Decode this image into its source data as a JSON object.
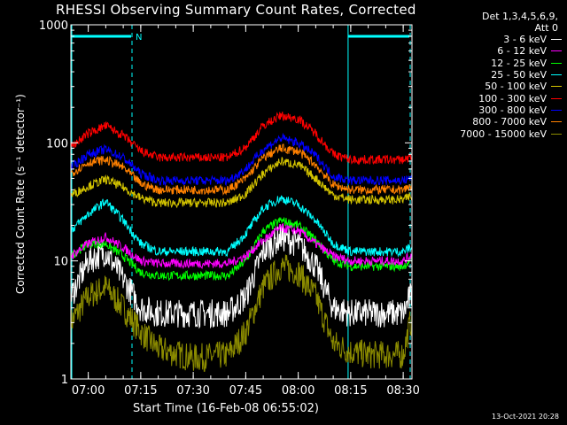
{
  "chart_data": {
    "type": "line",
    "title": "RHESSI Observing Summary Count Rates, Corrected",
    "xlabel": "Start Time (16-Feb-08 06:55:02)",
    "ylabel": "Corrected Count Rate (s⁻¹ detector⁻¹)",
    "yscale": "log",
    "ylim": [
      1,
      1000
    ],
    "xlim": [
      "06:55:02",
      "08:32:30"
    ],
    "x_ticks": [
      "07:00",
      "07:15",
      "07:30",
      "07:45",
      "08:00",
      "08:15",
      "08:30"
    ],
    "y_ticks": [
      "1",
      "10",
      "100",
      "1000"
    ],
    "legend_header": [
      "Det 1,3,4,5,6,9,",
      "Att 0"
    ],
    "legend_position": "top-right",
    "sample_times": [
      "06:55",
      "07:00",
      "07:05",
      "07:10",
      "07:15",
      "07:20",
      "07:30",
      "07:40",
      "07:45",
      "07:50",
      "07:55",
      "08:00",
      "08:05",
      "08:10",
      "08:15",
      "08:20",
      "08:25",
      "08:30",
      "08:32"
    ],
    "series": [
      {
        "name": "3 - 6 keV",
        "color": "#ffffff",
        "values": [
          5,
          10,
          12,
          7,
          4,
          3.6,
          3.6,
          3.6,
          5,
          12,
          16,
          14,
          9,
          4,
          3.6,
          3.6,
          3.6,
          3.6,
          5
        ]
      },
      {
        "name": "6 - 12 keV",
        "color": "#ff00ff",
        "values": [
          11,
          14,
          16,
          13,
          10,
          9.5,
          9.5,
          9.5,
          11,
          15,
          19,
          18,
          14,
          11,
          10,
          10,
          10,
          10,
          11
        ]
      },
      {
        "name": "12 - 25 keV",
        "color": "#00ff00",
        "values": [
          11,
          14,
          14,
          11,
          8,
          7.5,
          7.5,
          7.5,
          10,
          18,
          22,
          20,
          15,
          10,
          9,
          9,
          9,
          9,
          10
        ]
      },
      {
        "name": "25 - 50 keV",
        "color": "#00ffff",
        "values": [
          18,
          25,
          32,
          22,
          14,
          12,
          12,
          12,
          17,
          28,
          34,
          30,
          22,
          14,
          12,
          12,
          12,
          12,
          13
        ]
      },
      {
        "name": "50 - 100 keV",
        "color": "#d4c400",
        "values": [
          36,
          43,
          49,
          42,
          34,
          31,
          31,
          31,
          37,
          55,
          70,
          65,
          50,
          36,
          33,
          33,
          33,
          33,
          35
        ]
      },
      {
        "name": "100 - 300 keV",
        "color": "#ff0000",
        "values": [
          92,
          120,
          140,
          115,
          85,
          75,
          75,
          75,
          92,
          140,
          170,
          160,
          120,
          80,
          72,
          72,
          72,
          72,
          75
        ]
      },
      {
        "name": "300 - 800 keV",
        "color": "#0000ff",
        "values": [
          62,
          80,
          88,
          75,
          55,
          48,
          48,
          48,
          60,
          88,
          110,
          100,
          78,
          52,
          48,
          48,
          48,
          48,
          50
        ]
      },
      {
        "name": "800 - 7000 keV",
        "color": "#ff8000",
        "values": [
          55,
          68,
          72,
          62,
          45,
          40,
          40,
          40,
          50,
          75,
          90,
          85,
          65,
          44,
          40,
          40,
          40,
          40,
          43
        ]
      },
      {
        "name": "7000 - 15000 keV",
        "color": "#8b8b00",
        "values": [
          3,
          5,
          6,
          4,
          2.5,
          1.8,
          1.5,
          1.6,
          2.5,
          6,
          9,
          8,
          5,
          2,
          1.7,
          1.6,
          1.6,
          1.6,
          3
        ]
      }
    ],
    "annotations": [
      {
        "type": "night",
        "label": "N",
        "start": "06:55:02",
        "end": "07:12:30"
      },
      {
        "type": "night",
        "label": "",
        "start": "08:14:00",
        "end": "08:32:00"
      }
    ],
    "colors": {
      "background": "#000000",
      "axes": "#ffffff",
      "night_bar": "#00ffff"
    }
  },
  "meta": {
    "timestamp": "13-Oct-2021 20:28"
  }
}
